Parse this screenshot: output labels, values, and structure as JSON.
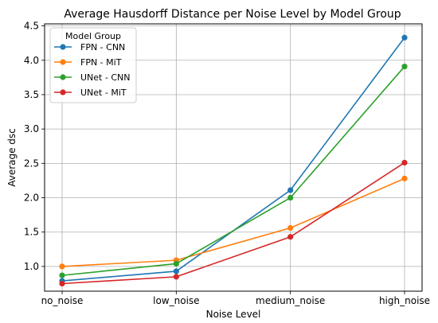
{
  "chart_data": {
    "type": "line",
    "title": "Average Hausdorff Distance per Noise Level by Model Group",
    "xlabel": "Noise Level",
    "ylabel": "Average dsc",
    "categories": [
      "no_noise",
      "low_noise",
      "medium_noise",
      "high_noise"
    ],
    "ylim": [
      0.64,
      4.53
    ],
    "yticks": [
      "1.0",
      "1.5",
      "2.0",
      "2.5",
      "3.0",
      "3.5",
      "4.0",
      "4.5"
    ],
    "grid": true,
    "legend": {
      "title": "Model Group",
      "placement": "upper-left"
    },
    "series": [
      {
        "name": "FPN - CNN",
        "color": "#1f77b4",
        "values": [
          0.79,
          0.93,
          2.11,
          4.33
        ]
      },
      {
        "name": "FPN - MiT",
        "color": "#ff7f0e",
        "values": [
          1.0,
          1.09,
          1.56,
          2.28
        ]
      },
      {
        "name": "UNet - CNN",
        "color": "#2ca02c",
        "values": [
          0.87,
          1.04,
          2.0,
          3.91
        ]
      },
      {
        "name": "UNet - MiT",
        "color": "#d62728",
        "values": [
          0.75,
          0.85,
          1.43,
          2.51
        ]
      }
    ]
  }
}
